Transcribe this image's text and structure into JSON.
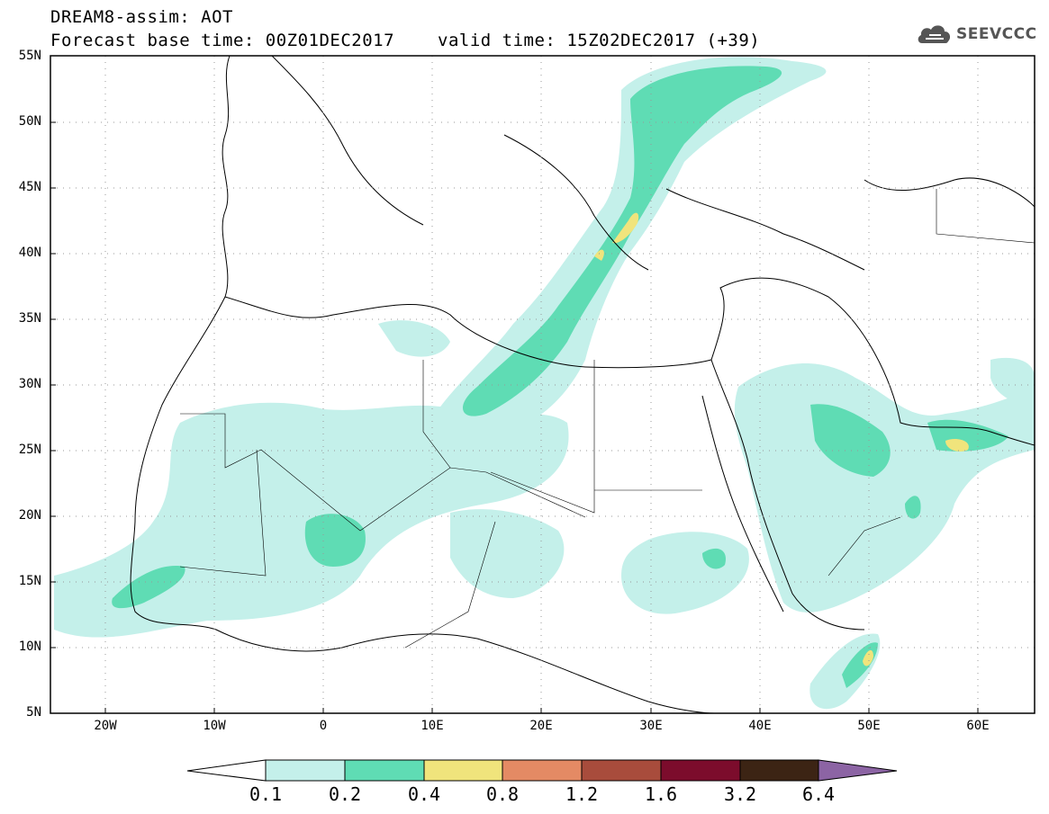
{
  "header": {
    "title_line1": "DREAM8-assim: AOT",
    "base_time_label": "Forecast base time: 00Z01DEC2017",
    "valid_time_label": "valid time: 15Z02DEC2017 (+39)"
  },
  "logo": {
    "text": "SEEVCCC",
    "icon": "cloud-icon"
  },
  "map": {
    "lat_labels": [
      "55N",
      "50N",
      "45N",
      "40N",
      "35N",
      "30N",
      "25N",
      "20N",
      "15N",
      "10N",
      "5N"
    ],
    "lon_labels": [
      "20W",
      "10W",
      "0",
      "10E",
      "20E",
      "30E",
      "40E",
      "50E",
      "60E"
    ]
  },
  "colorbar": {
    "labels": [
      "0.1",
      "0.2",
      "0.4",
      "0.8",
      "1.2",
      "1.6",
      "3.2",
      "6.4"
    ],
    "colors": [
      "#c4f0ea",
      "#5fdcb4",
      "#f0e47c",
      "#e48a64",
      "#a84c3c",
      "#7c0c2c",
      "#3c2414",
      "#8c64a4"
    ]
  }
}
